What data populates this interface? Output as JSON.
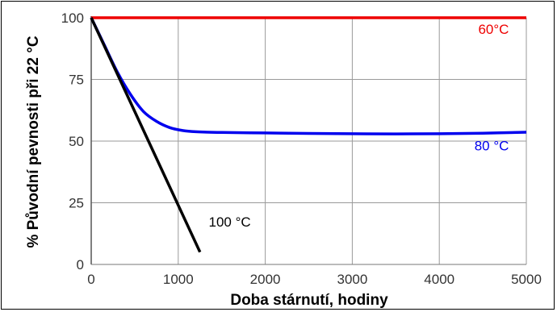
{
  "chart_data": {
    "type": "line",
    "xlabel": "Doba stárnutí, hodiny",
    "ylabel": "% Původní pevnosti při 22 °C",
    "xlim": [
      0,
      5000
    ],
    "ylim": [
      0,
      100
    ],
    "x_ticks": [
      0,
      1000,
      2000,
      3000,
      4000,
      5000
    ],
    "y_ticks": [
      0,
      25,
      50,
      75,
      100
    ],
    "grid": true,
    "legend": "none",
    "series": [
      {
        "name": "60°C",
        "color": "#ee0000",
        "x": [
          0,
          5000
        ],
        "y": [
          100,
          100
        ]
      },
      {
        "name": "80 °C",
        "color": "#0000ee",
        "x": [
          0,
          150,
          300,
          450,
          600,
          750,
          900,
          1050,
          1200,
          1500,
          2000,
          2500,
          3000,
          3500,
          4000,
          4500,
          5000
        ],
        "y": [
          100,
          89,
          78,
          69,
          62,
          58,
          55.5,
          54.3,
          53.8,
          53.5,
          53.3,
          53.1,
          53.0,
          52.9,
          53.0,
          53.2,
          53.6
        ]
      },
      {
        "name": "100 °C",
        "color": "#000000",
        "x": [
          0,
          1250
        ],
        "y": [
          100,
          5
        ]
      }
    ]
  }
}
